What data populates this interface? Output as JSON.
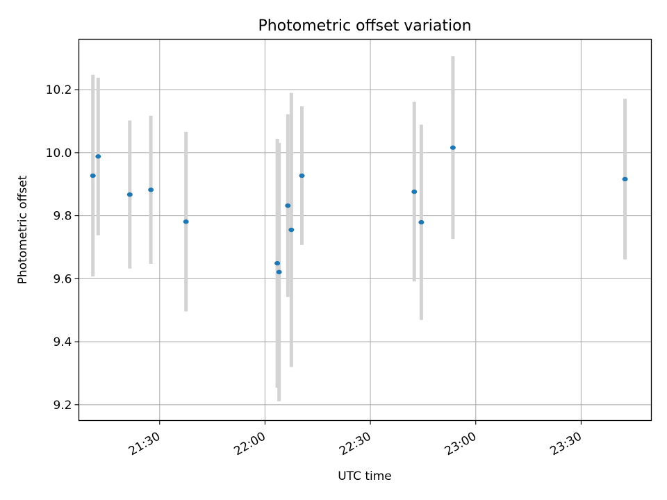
{
  "chart_data": {
    "type": "scatter",
    "title": "Photometric offset variation",
    "xlabel": "UTC time",
    "ylabel": "Photometric offset",
    "x_axis_type": "time",
    "xlim": [
      "21:07",
      "23:50"
    ],
    "ylim": [
      9.15,
      10.36
    ],
    "x_ticks": [
      "21:30",
      "22:00",
      "22:30",
      "23:00",
      "23:30"
    ],
    "y_ticks": [
      "9.2",
      "9.4",
      "9.6",
      "9.8",
      "10.0",
      "10.2"
    ],
    "grid": true,
    "colors": {
      "marker": "#1f77b4",
      "errorbar": "#d3d3d3",
      "grid": "#b0b0b0"
    },
    "points": [
      {
        "x": "21:11:00",
        "y": 9.927,
        "err": 0.32
      },
      {
        "x": "21:12:30",
        "y": 9.988,
        "err": 0.25
      },
      {
        "x": "21:21:30",
        "y": 9.867,
        "err": 0.235
      },
      {
        "x": "21:27:30",
        "y": 9.882,
        "err": 0.235
      },
      {
        "x": "21:37:30",
        "y": 9.781,
        "err": 0.285
      },
      {
        "x": "22:03:30",
        "y": 9.649,
        "err": 0.395
      },
      {
        "x": "22:04:00",
        "y": 9.621,
        "err": 0.41
      },
      {
        "x": "22:06:30",
        "y": 9.832,
        "err": 0.29
      },
      {
        "x": "22:07:30",
        "y": 9.755,
        "err": 0.435
      },
      {
        "x": "22:10:30",
        "y": 9.927,
        "err": 0.22
      },
      {
        "x": "22:42:30",
        "y": 9.876,
        "err": 0.285
      },
      {
        "x": "22:44:30",
        "y": 9.779,
        "err": 0.31
      },
      {
        "x": "22:53:30",
        "y": 10.016,
        "err": 0.29
      },
      {
        "x": "23:42:30",
        "y": 9.916,
        "err": 0.255
      }
    ]
  }
}
